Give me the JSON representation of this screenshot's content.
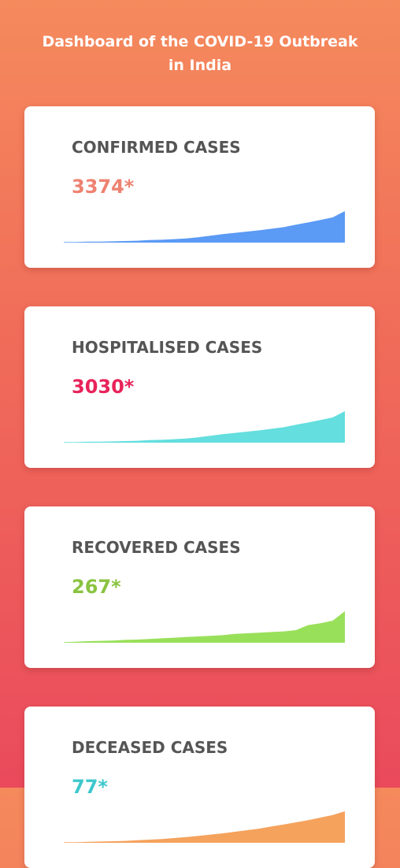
{
  "header": {
    "title_line1": "Dashboard of the COVID-19 Outbreak",
    "title_line2": "in India"
  },
  "cards": [
    {
      "title": "CONFIRMED CASES",
      "value": "3374*",
      "value_color": "#ee8270",
      "chart_color": "#5b9af5",
      "trend": [
        2,
        2,
        3,
        3,
        4,
        5,
        6,
        8,
        9,
        11,
        13,
        17,
        22,
        27,
        31,
        35,
        39,
        44,
        49,
        57,
        64,
        72,
        80,
        100
      ]
    },
    {
      "title": "HOSPITALISED CASES",
      "value": "3030*",
      "value_color": "#e8235a",
      "chart_color": "#64dede",
      "trend": [
        2,
        2,
        3,
        3,
        4,
        5,
        6,
        8,
        9,
        11,
        13,
        17,
        22,
        27,
        31,
        35,
        39,
        44,
        49,
        57,
        64,
        72,
        80,
        100
      ]
    },
    {
      "title": "RECOVERED CASES",
      "value": "267*",
      "value_color": "#8ac341",
      "chart_color": "#99e05a",
      "trend": [
        2,
        3,
        5,
        6,
        7,
        9,
        10,
        12,
        14,
        16,
        18,
        20,
        22,
        24,
        28,
        30,
        32,
        34,
        36,
        40,
        56,
        62,
        70,
        100
      ]
    },
    {
      "title": "DECEASED CASES",
      "value": "77*",
      "value_color": "#3dc8cc",
      "chart_color": "#f5a25d",
      "trend": [
        2,
        2,
        3,
        4,
        5,
        6,
        8,
        10,
        12,
        15,
        18,
        22,
        26,
        30,
        35,
        40,
        45,
        52,
        58,
        65,
        72,
        80,
        88,
        100
      ]
    }
  ]
}
